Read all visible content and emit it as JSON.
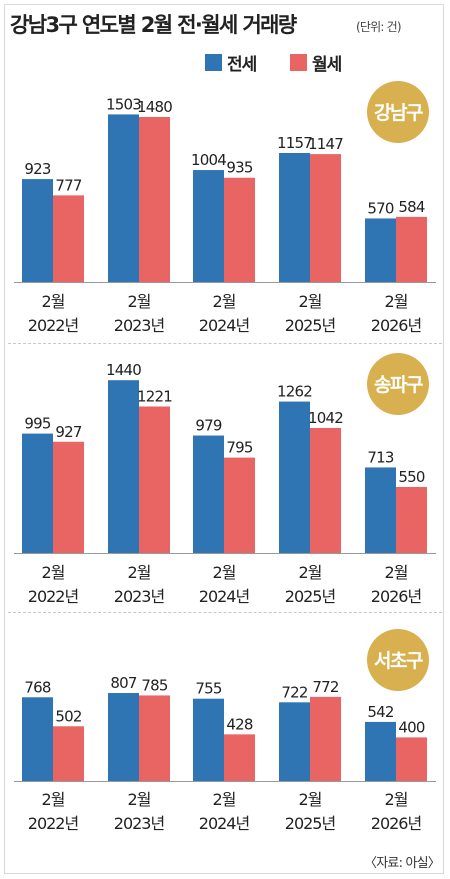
{
  "title": "강남3구 연도별 2월 전·월세 거래량",
  "unit": "(단위: 건)",
  "source": "〈자료: 아실〉",
  "colors": {
    "jeonse": "#2f74b3",
    "wolse": "#e86563",
    "badge": "#d9b04f"
  },
  "legend": [
    {
      "label": "전세",
      "color": "#2f74b3"
    },
    {
      "label": "월세",
      "color": "#e86563"
    }
  ],
  "chart_data": [
    {
      "type": "bar",
      "title": "강남구",
      "categories": [
        [
          "2월",
          "2022년"
        ],
        [
          "2월",
          "2023년"
        ],
        [
          "2월",
          "2024년"
        ],
        [
          "2월",
          "2025년"
        ],
        [
          "2월",
          "2026년"
        ]
      ],
      "series": [
        {
          "name": "전세",
          "values": [
            923,
            1503,
            1004,
            1157,
            570
          ]
        },
        {
          "name": "월세",
          "values": [
            777,
            1480,
            935,
            1147,
            584
          ]
        }
      ]
    },
    {
      "type": "bar",
      "title": "송파구",
      "categories": [
        [
          "2월",
          "2022년"
        ],
        [
          "2월",
          "2023년"
        ],
        [
          "2월",
          "2024년"
        ],
        [
          "2월",
          "2025년"
        ],
        [
          "2월",
          "2026년"
        ]
      ],
      "series": [
        {
          "name": "전세",
          "values": [
            995,
            1440,
            979,
            1262,
            713
          ]
        },
        {
          "name": "월세",
          "values": [
            927,
            1221,
            795,
            1042,
            550
          ]
        }
      ]
    },
    {
      "type": "bar",
      "title": "서초구",
      "categories": [
        [
          "2월",
          "2022년"
        ],
        [
          "2월",
          "2023년"
        ],
        [
          "2월",
          "2024년"
        ],
        [
          "2월",
          "2025년"
        ],
        [
          "2월",
          "2026년"
        ]
      ],
      "series": [
        {
          "name": "전세",
          "values": [
            768,
            807,
            755,
            722,
            542
          ]
        },
        {
          "name": "월세",
          "values": [
            502,
            785,
            428,
            772,
            400
          ]
        }
      ]
    }
  ]
}
